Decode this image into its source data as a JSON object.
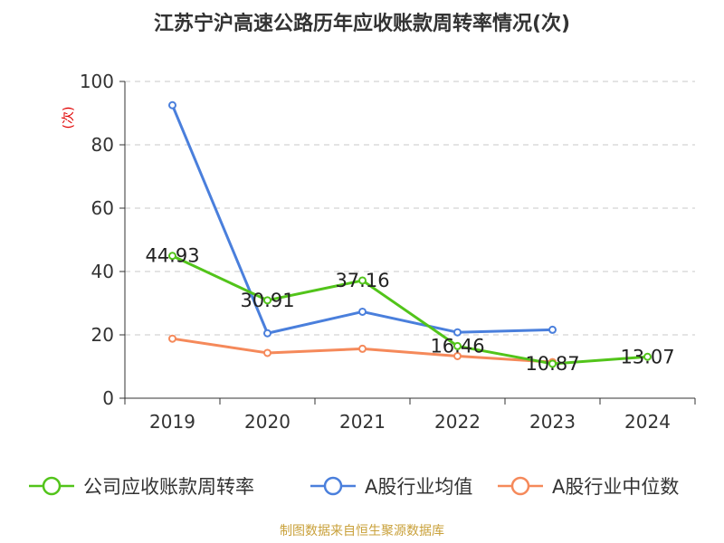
{
  "title": "江苏宁沪高速公路历年应收账款周转率情况(次)",
  "source": "制图数据来自恒生聚源数据库",
  "chart_data": {
    "type": "line",
    "title": "江苏宁沪高速公路历年应收账款周转率情况(次)",
    "ylabel": "(次)",
    "xlabel": "",
    "categories": [
      "2019",
      "2020",
      "2021",
      "2022",
      "2023",
      "2024"
    ],
    "ylim": [
      0,
      100
    ],
    "yticks": [
      0,
      20,
      40,
      60,
      80,
      100
    ],
    "grid": true,
    "legend_position": "bottom",
    "series": [
      {
        "name": "公司应收账款周转率",
        "color": "#52c41a",
        "values": [
          44.93,
          30.91,
          37.16,
          16.46,
          10.87,
          13.07
        ],
        "labels": [
          "44.93",
          "30.91",
          "37.16",
          "16.46",
          "10.87",
          "13.07"
        ]
      },
      {
        "name": "A股行业均值",
        "color": "#4a7fdc",
        "values": [
          92.5,
          20.5,
          27.3,
          20.8,
          21.6,
          null
        ]
      },
      {
        "name": "A股行业中位数",
        "color": "#f5895a",
        "values": [
          18.8,
          14.3,
          15.6,
          13.3,
          11.4,
          null
        ]
      }
    ]
  }
}
